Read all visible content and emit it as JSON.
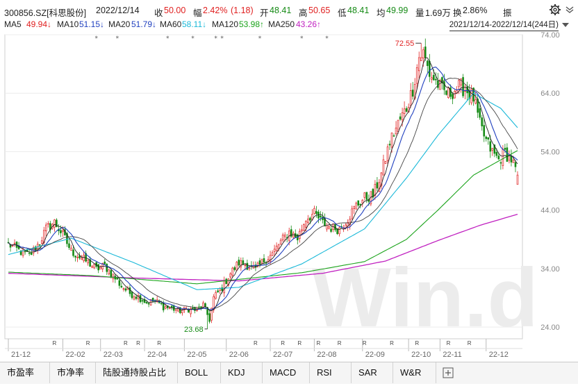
{
  "header": {
    "code": "300856.SZ[科思股份]",
    "date": "2022/12/14",
    "close_label": "收",
    "close": "50.00",
    "change_label": "幅",
    "change_pct": "2.42%",
    "change_abs": "(1.18)",
    "open_label": "开",
    "open": "48.41",
    "high_label": "高",
    "high": "50.65",
    "low_label": "低",
    "low": "48.41",
    "avg_label": "均",
    "avg": "49.99",
    "volume_label": "量",
    "volume": "1.69万",
    "turnover_label": "换",
    "turnover": "2.86%",
    "amplitude_label": "振"
  },
  "ma_legend": [
    {
      "label": "MA5",
      "value": "49.94↓",
      "color": "#000000"
    },
    {
      "label": "MA10",
      "value": "51.15↓",
      "color": "#1f3fbf"
    },
    {
      "label": "MA20",
      "value": "51.79↓",
      "color": "#000000"
    },
    {
      "label": "MA60",
      "value": "58.11↓",
      "color": "#19b8d8"
    },
    {
      "label": "MA120",
      "value": "53.98↑",
      "color": "#1aa31a"
    },
    {
      "label": "MA250",
      "value": "43.26↑",
      "color": "#c020c0"
    }
  ],
  "range": "2021/12/14-2022/12/14(244日)",
  "icons": {
    "settings": "gear-icon",
    "menu": "chevron-down-icon",
    "dropdown": "triangle-down-icon",
    "add_tab": "plus-box-icon"
  },
  "colors": {
    "up": "#e02020",
    "down": "#158a15",
    "ma5": "#222222",
    "ma10": "#1f3fbf",
    "ma20": "#444444",
    "ma60": "#19b8d8",
    "ma120": "#1aa31a",
    "ma250": "#c020c0",
    "watermark": "#ececec"
  },
  "watermark": "Win.d",
  "tabs": [
    "市盈率",
    "市净率",
    "陆股通持股占比",
    "BOLL",
    "KDJ",
    "MACD",
    "RSI",
    "SAR",
    "W&R"
  ],
  "chart_data": {
    "type": "candlestick",
    "ylim": [
      22,
      74
    ],
    "y_ticks": [
      "74.00",
      "64.00",
      "54.00",
      "44.00",
      "34.00",
      "24.00"
    ],
    "x_ticks": [
      "21-12",
      "22-02",
      "22-03",
      "22-04",
      "22-05",
      "22-06",
      "22-07",
      "22-08",
      "22-09",
      "22-10",
      "22-11",
      "22-12"
    ],
    "n_days": 244,
    "annotations": [
      {
        "label": "72.55",
        "value": 72.55,
        "kind": "high"
      },
      {
        "label": "23.68",
        "value": 23.68,
        "kind": "low"
      }
    ],
    "close_anchors": [
      [
        0,
        38.2
      ],
      [
        5,
        37.1
      ],
      [
        10,
        36.2
      ],
      [
        15,
        38.5
      ],
      [
        18,
        40.8
      ],
      [
        22,
        41.9
      ],
      [
        26,
        39.8
      ],
      [
        30,
        37.0
      ],
      [
        34,
        36.0
      ],
      [
        38,
        35.1
      ],
      [
        42,
        33.9
      ],
      [
        46,
        34.5
      ],
      [
        50,
        32.8
      ],
      [
        54,
        31.0
      ],
      [
        58,
        29.8
      ],
      [
        62,
        29.2
      ],
      [
        66,
        28.2
      ],
      [
        70,
        28.5
      ],
      [
        74,
        27.5
      ],
      [
        78,
        27.2
      ],
      [
        82,
        26.8
      ],
      [
        86,
        27.1
      ],
      [
        90,
        26.9
      ],
      [
        93,
        27.8
      ],
      [
        96,
        25.3
      ],
      [
        98,
        29.0
      ],
      [
        102,
        30.8
      ],
      [
        106,
        33.2
      ],
      [
        110,
        35.0
      ],
      [
        114,
        34.6
      ],
      [
        118,
        33.8
      ],
      [
        122,
        35.4
      ],
      [
        126,
        36.5
      ],
      [
        130,
        38.6
      ],
      [
        134,
        40.3
      ],
      [
        138,
        39.2
      ],
      [
        142,
        42.6
      ],
      [
        146,
        43.4
      ],
      [
        150,
        41.8
      ],
      [
        154,
        41.0
      ],
      [
        158,
        40.8
      ],
      [
        162,
        42.6
      ],
      [
        166,
        44.8
      ],
      [
        170,
        46.1
      ],
      [
        174,
        46.5
      ],
      [
        178,
        50.2
      ],
      [
        182,
        55.6
      ],
      [
        186,
        58.8
      ],
      [
        190,
        61.5
      ],
      [
        193,
        64.8
      ],
      [
        196,
        70.2
      ],
      [
        198,
        70.8
      ],
      [
        201,
        67.3
      ],
      [
        204,
        66.0
      ],
      [
        207,
        64.5
      ],
      [
        210,
        63.8
      ],
      [
        213,
        64.6
      ],
      [
        216,
        65.1
      ],
      [
        219,
        64.4
      ],
      [
        222,
        63.2
      ],
      [
        225,
        58.6
      ],
      [
        228,
        55.8
      ],
      [
        231,
        53.9
      ],
      [
        234,
        52.6
      ],
      [
        237,
        53.8
      ],
      [
        240,
        52.7
      ],
      [
        243,
        50.0
      ]
    ],
    "ma_curves": {
      "MA5": "follows closes (5-day average)",
      "MA10": "10-day average",
      "MA20": "20-day average",
      "MA60": [
        [
          0,
          36.4
        ],
        [
          30,
          39.2
        ],
        [
          60,
          35.0
        ],
        [
          90,
          30.4
        ],
        [
          110,
          30.8
        ],
        [
          140,
          34.8
        ],
        [
          170,
          40.8
        ],
        [
          190,
          49.5
        ],
        [
          205,
          56.8
        ],
        [
          222,
          64.0
        ],
        [
          235,
          61.4
        ],
        [
          243,
          58.1
        ]
      ],
      "MA120": [
        [
          0,
          33.4
        ],
        [
          40,
          32.8
        ],
        [
          90,
          31.4
        ],
        [
          140,
          33.3
        ],
        [
          170,
          35.2
        ],
        [
          190,
          39.0
        ],
        [
          205,
          44.0
        ],
        [
          222,
          50.0
        ],
        [
          243,
          54.2
        ]
      ],
      "MA250": [
        [
          0,
          33.2
        ],
        [
          60,
          32.4
        ],
        [
          110,
          31.9
        ],
        [
          150,
          33.2
        ],
        [
          180,
          35.3
        ],
        [
          205,
          38.8
        ],
        [
          225,
          41.4
        ],
        [
          243,
          43.3
        ]
      ]
    }
  }
}
